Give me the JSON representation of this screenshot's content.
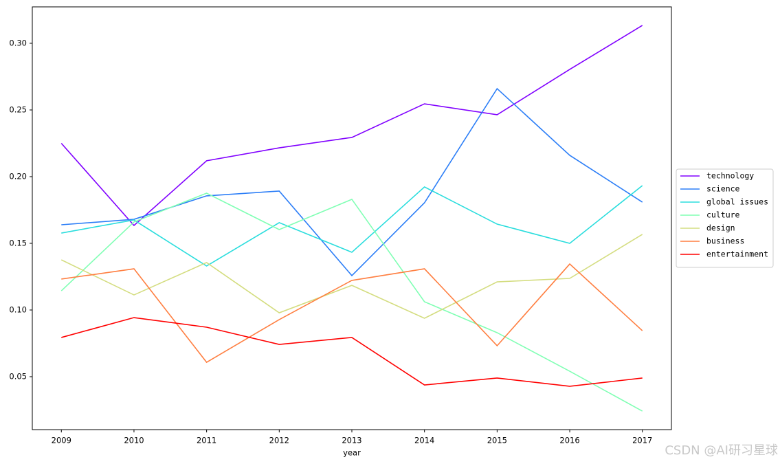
{
  "chart_data": {
    "type": "line",
    "x_label": "year",
    "x": [
      2009,
      2010,
      2011,
      2012,
      2013,
      2014,
      2015,
      2016,
      2017
    ],
    "xlim": [
      2008.6,
      2017.4
    ],
    "xticks": [
      2009,
      2010,
      2011,
      2012,
      2013,
      2014,
      2015,
      2016,
      2017
    ],
    "ylim": [
      0.0103,
      0.3273
    ],
    "yticks": [
      0.05,
      {
        "value": 0.1,
        "label": "0.10"
      },
      0.15,
      {
        "value": 0.2,
        "label": "0.20"
      },
      0.25,
      {
        "value": 0.3,
        "label": "0.30"
      }
    ],
    "legend": "right",
    "series": [
      {
        "name": "technology",
        "color": "#8000ff",
        "values": [
          0.225,
          0.1634,
          0.2119,
          0.2216,
          0.2294,
          0.2546,
          0.2464,
          0.2804,
          0.3134
        ]
      },
      {
        "name": "science",
        "color": "#2c7ef7",
        "values": [
          0.1639,
          0.168,
          0.1856,
          0.1892,
          0.1258,
          0.1804,
          0.266,
          0.216,
          0.1809
        ]
      },
      {
        "name": "global issues",
        "color": "#2adddd",
        "values": [
          0.1577,
          0.1675,
          0.133,
          0.1655,
          0.1433,
          0.1923,
          0.1644,
          0.15,
          0.1933
        ]
      },
      {
        "name": "culture",
        "color": "#80ffb4",
        "values": [
          0.1144,
          0.166,
          0.1876,
          0.1603,
          0.183,
          0.1062,
          0.083,
          0.0541,
          0.0242
        ]
      },
      {
        "name": "design",
        "color": "#d4dd80",
        "values": [
          0.1376,
          0.1113,
          0.1356,
          0.0979,
          0.1185,
          0.0938,
          0.1211,
          0.1237,
          0.1567
        ]
      },
      {
        "name": "business",
        "color": "#ff7f41",
        "values": [
          0.1232,
          0.1309,
          0.0608,
          0.0928,
          0.1222,
          0.1309,
          0.0732,
          0.1345,
          0.0845
        ]
      },
      {
        "name": "entertainment",
        "color": "#ff0000",
        "values": [
          0.0794,
          0.0943,
          0.0871,
          0.0742,
          0.0794,
          0.0438,
          0.049,
          0.0428,
          0.049
        ]
      }
    ]
  },
  "watermark": "CSDN @AI研习星球"
}
